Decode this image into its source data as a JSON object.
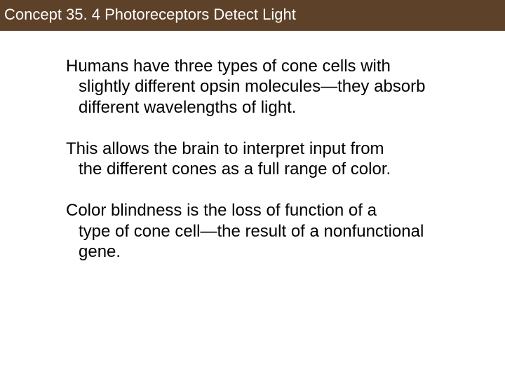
{
  "header": {
    "title": "Concept 35. 4 Photoreceptors Detect Light",
    "bg_color": "#5e4129",
    "text_color": "#ffffff",
    "font_size": 22
  },
  "body": {
    "text_color": "#000000",
    "font_size": 24,
    "paragraphs": [
      {
        "first": "Humans have three types of cone cells with",
        "rest": "slightly different opsin molecules—they absorb different wavelengths of light."
      },
      {
        "first": "This allows the brain to interpret input from",
        "rest": "the different cones as a full range of color."
      },
      {
        "first": "Color blindness is the loss of function of a",
        "rest": "type of cone cell—the result of a nonfunctional gene."
      }
    ]
  }
}
